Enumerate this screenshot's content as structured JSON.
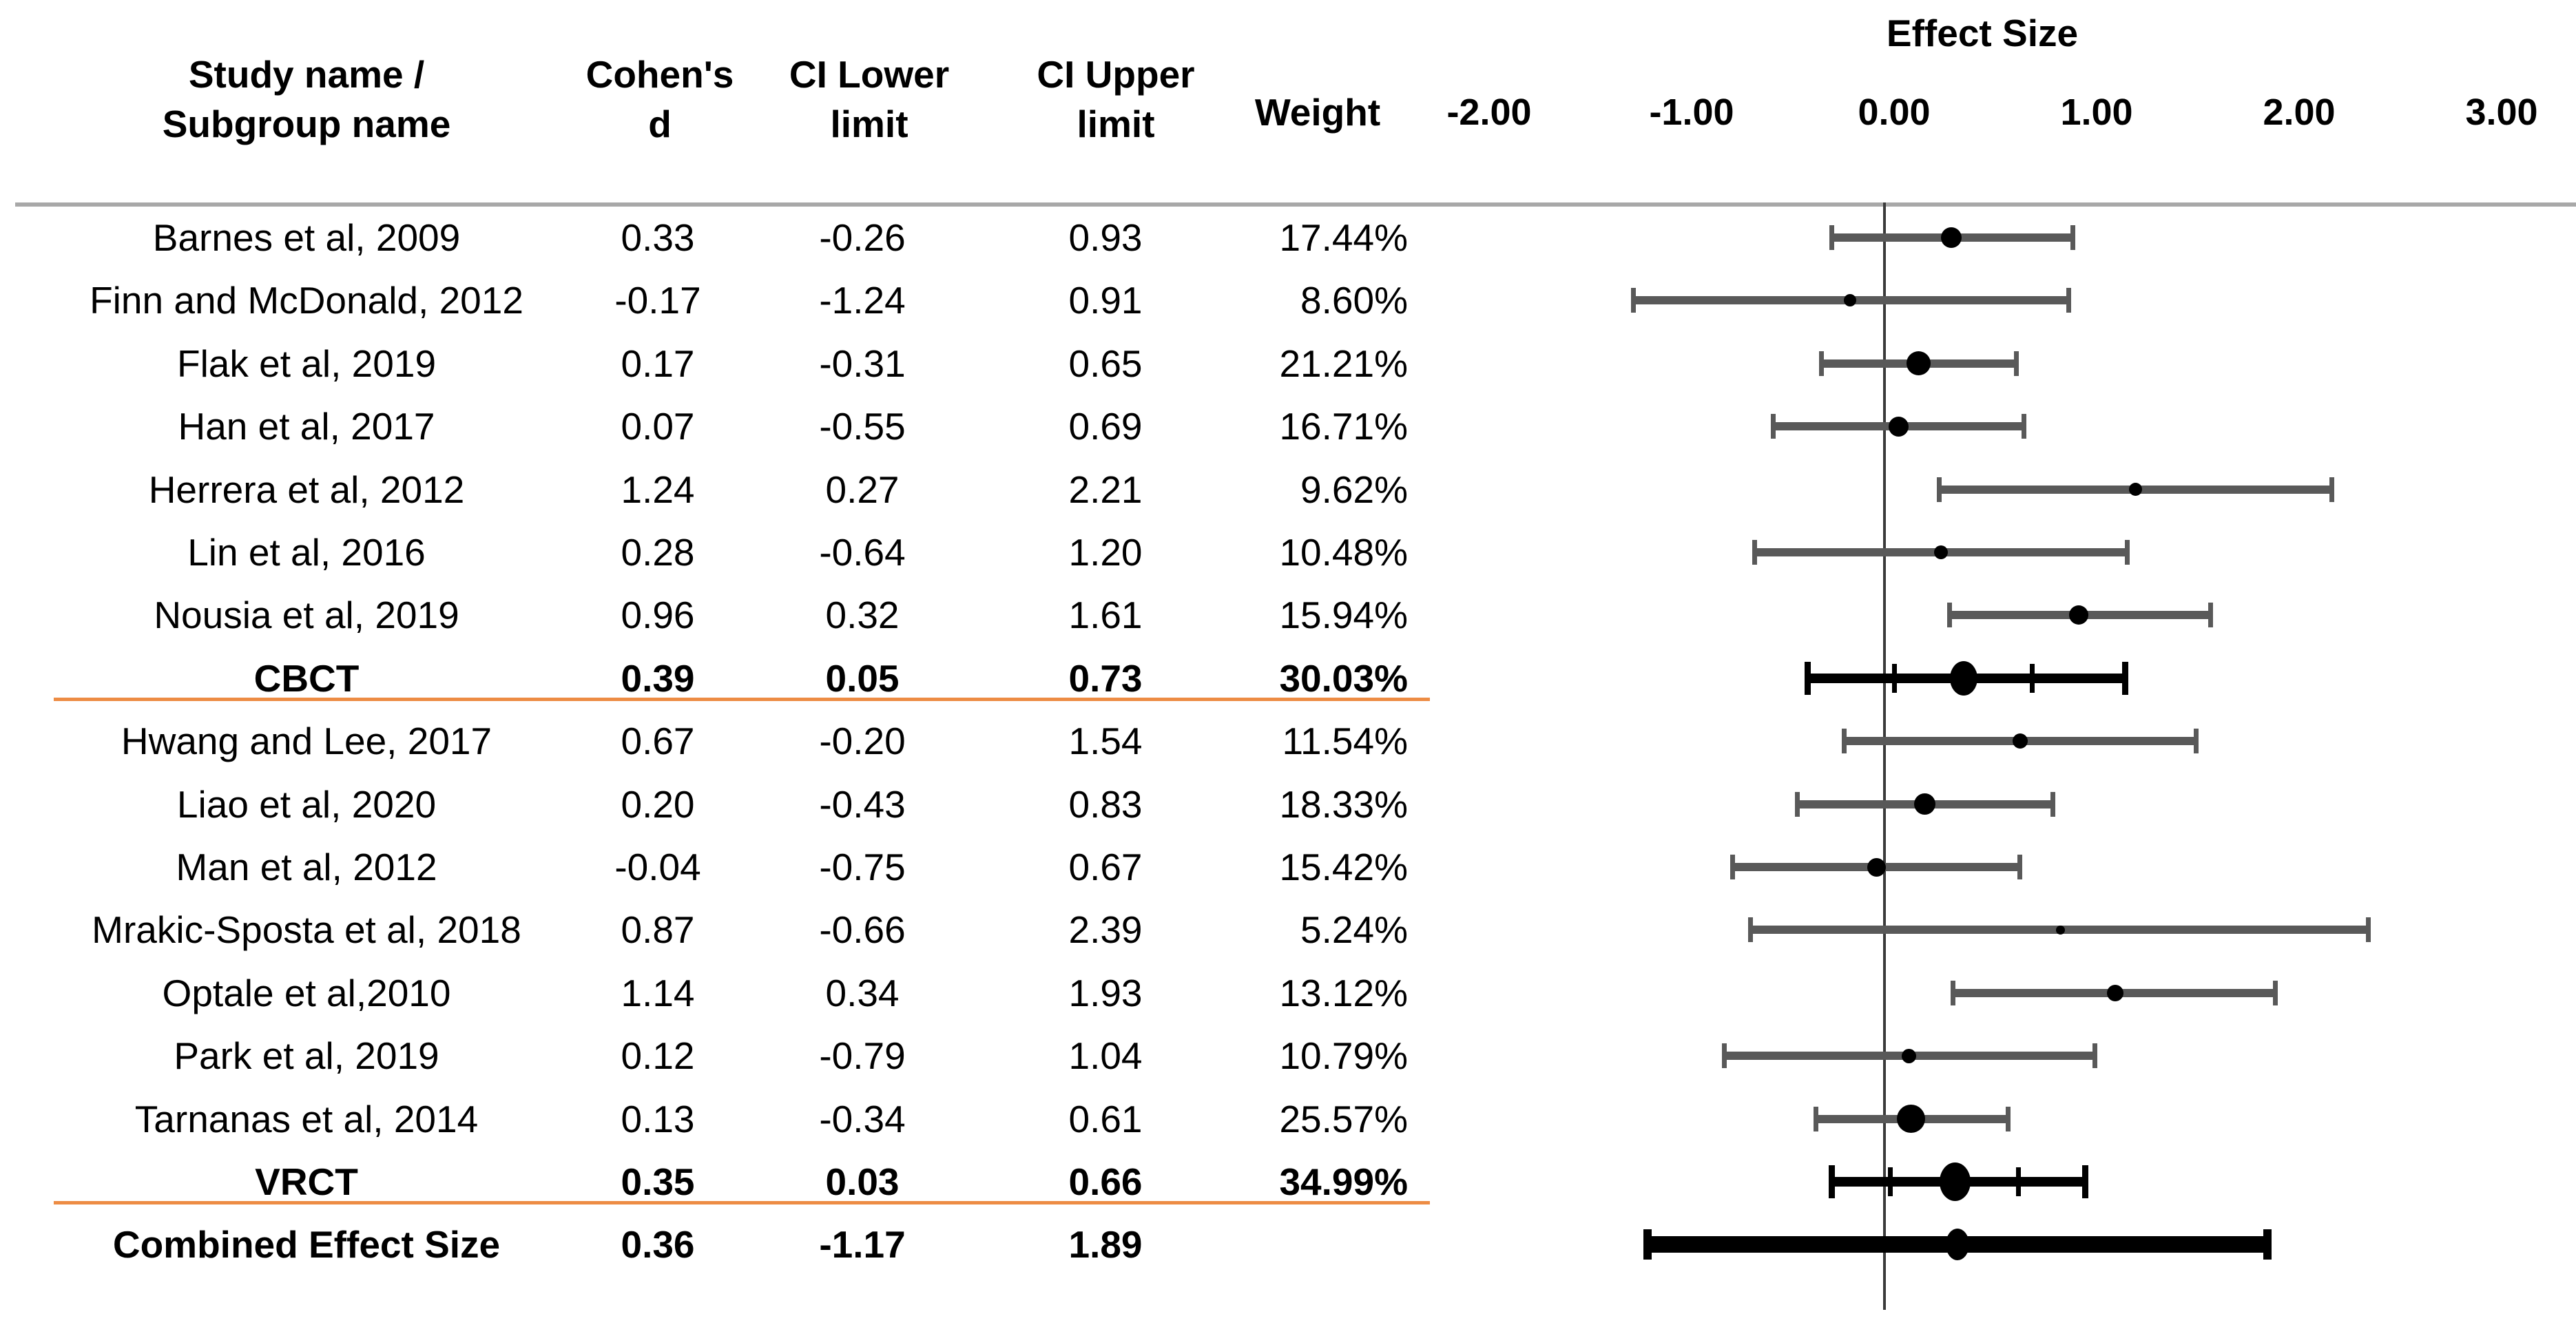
{
  "header": {
    "study_line1": "Study name /",
    "study_line2": "Subgroup name",
    "cohens_line1": "Cohen's",
    "cohens_line2": "d",
    "ci_lower_line1": "CI Lower",
    "ci_lower_line2": "limit",
    "ci_upper_line1": "CI Upper",
    "ci_upper_line2": "limit",
    "weight": "Weight",
    "plot_title": "Effect Size"
  },
  "axis": {
    "tick_labels": [
      "-2.00",
      "-1.00",
      "0.00",
      "1.00",
      "2.00",
      "3.00"
    ],
    "tick_values": [
      -2,
      -1,
      0,
      1,
      2,
      3
    ]
  },
  "colors": {
    "ci_bar_gray": "#595959",
    "marker_black": "#000000",
    "divider_orange": "#ED8C44",
    "header_rule_gray": "#A8A8A8",
    "zero_line_gray": "#3A3A3A"
  },
  "chart_data": {
    "type": "forest",
    "title": "Effect Size",
    "x_ticks": [
      -2,
      -1,
      0,
      1,
      2,
      3
    ],
    "xlim": [
      -2.5,
      3.5
    ],
    "zero_reference_line": 0,
    "grid": "off",
    "legend": "off",
    "columns": [
      "Study name / Subgroup name",
      "Cohen's d",
      "CI Lower limit",
      "CI Upper limit",
      "Weight"
    ],
    "rows": [
      {
        "label": "Barnes et al, 2009",
        "kind": "study",
        "cohens_d": 0.33,
        "ci_lower": -0.26,
        "ci_upper": 0.93,
        "weight_pct": 17.44
      },
      {
        "label": "Finn and McDonald, 2012",
        "kind": "study",
        "cohens_d": -0.17,
        "ci_lower": -1.24,
        "ci_upper": 0.91,
        "weight_pct": 8.6
      },
      {
        "label": "Flak et al, 2019",
        "kind": "study",
        "cohens_d": 0.17,
        "ci_lower": -0.31,
        "ci_upper": 0.65,
        "weight_pct": 21.21
      },
      {
        "label": "Han et al, 2017",
        "kind": "study",
        "cohens_d": 0.07,
        "ci_lower": -0.55,
        "ci_upper": 0.69,
        "weight_pct": 16.71
      },
      {
        "label": "Herrera et al, 2012",
        "kind": "study",
        "cohens_d": 1.24,
        "ci_lower": 0.27,
        "ci_upper": 2.21,
        "weight_pct": 9.62
      },
      {
        "label": "Lin et al, 2016",
        "kind": "study",
        "cohens_d": 0.28,
        "ci_lower": -0.64,
        "ci_upper": 1.2,
        "weight_pct": 10.48
      },
      {
        "label": "Nousia et al, 2019",
        "kind": "study",
        "cohens_d": 0.96,
        "ci_lower": 0.32,
        "ci_upper": 1.61,
        "weight_pct": 15.94
      },
      {
        "label": "CBCT",
        "kind": "subtotal",
        "cohens_d": 0.39,
        "ci_lower": 0.05,
        "ci_upper": 0.73,
        "weight_pct": 30.03,
        "pi_lower": -0.38,
        "pi_upper": 1.19
      },
      {
        "label": "Hwang and Lee, 2017",
        "kind": "study",
        "cohens_d": 0.67,
        "ci_lower": -0.2,
        "ci_upper": 1.54,
        "weight_pct": 11.54
      },
      {
        "label": "Liao et al, 2020",
        "kind": "study",
        "cohens_d": 0.2,
        "ci_lower": -0.43,
        "ci_upper": 0.83,
        "weight_pct": 18.33
      },
      {
        "label": "Man et al, 2012",
        "kind": "study",
        "cohens_d": -0.04,
        "ci_lower": -0.75,
        "ci_upper": 0.67,
        "weight_pct": 15.42
      },
      {
        "label": "Mrakic-Sposta et al, 2018",
        "kind": "study",
        "cohens_d": 0.87,
        "ci_lower": -0.66,
        "ci_upper": 2.39,
        "weight_pct": 5.24
      },
      {
        "label": "Optale et al,2010",
        "kind": "study",
        "cohens_d": 1.14,
        "ci_lower": 0.34,
        "ci_upper": 1.93,
        "weight_pct": 13.12
      },
      {
        "label": "Park et al, 2019",
        "kind": "study",
        "cohens_d": 0.12,
        "ci_lower": -0.79,
        "ci_upper": 1.04,
        "weight_pct": 10.79
      },
      {
        "label": "Tarnanas et al, 2014",
        "kind": "study",
        "cohens_d": 0.13,
        "ci_lower": -0.34,
        "ci_upper": 0.61,
        "weight_pct": 25.57
      },
      {
        "label": "VRCT",
        "kind": "subtotal",
        "cohens_d": 0.35,
        "ci_lower": 0.03,
        "ci_upper": 0.66,
        "weight_pct": 34.99,
        "pi_lower": -0.26,
        "pi_upper": 0.99
      },
      {
        "label": "Combined Effect Size",
        "kind": "combined",
        "cohens_d": 0.36,
        "ci_lower": -1.17,
        "ci_upper": 1.89,
        "weight_pct": null
      }
    ]
  }
}
